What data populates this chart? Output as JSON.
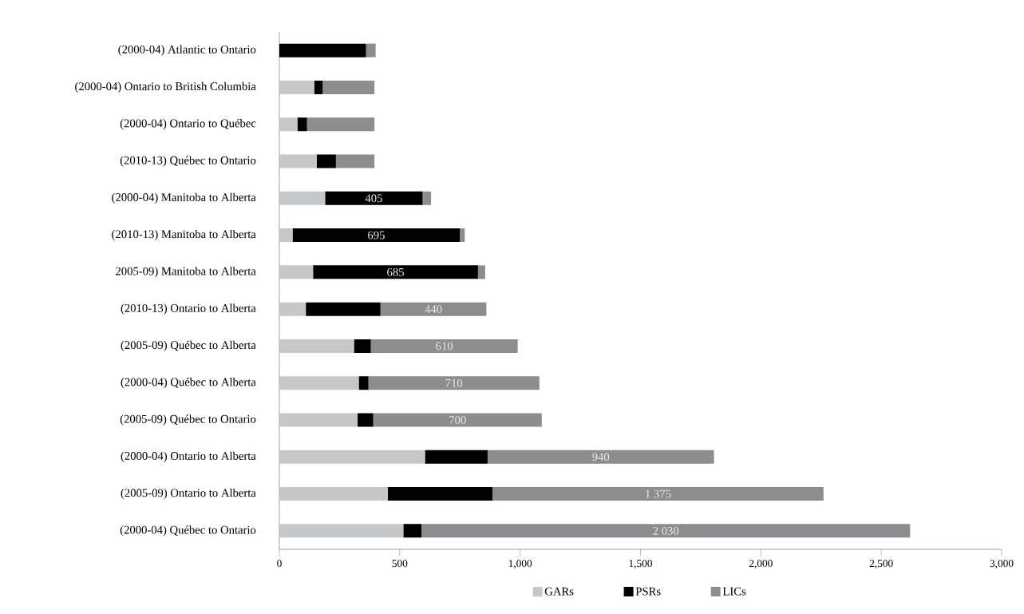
{
  "chart_data": {
    "type": "bar",
    "orientation": "horizontal",
    "stacked": true,
    "categories": [
      "(2000-04) Atlantic to Ontario",
      "(2000-04) Ontario to British Columbia",
      "(2000-04) Ontario to Québec",
      "(2010-13) Québec to Ontario",
      "(2000-04) Manitoba to Alberta",
      "(2010-13) Manitoba to Alberta",
      "2005-09) Manitoba to Alberta",
      "(2010-13) Ontario to Alberta",
      "(2005-09) Québec to Alberta",
      "(2000-04) Québec to Alberta",
      "(2005-09) Québec to Ontario",
      "(2000-04) Ontario to Alberta",
      "(2005-09) Ontario to Alberta",
      "(2000-04) Québec to Ontario"
    ],
    "series": [
      {
        "name": "GARs",
        "color": "#c6c7c9",
        "values": [
          0,
          145,
          75,
          155,
          190,
          55,
          140,
          110,
          310,
          330,
          325,
          605,
          450,
          515
        ]
      },
      {
        "name": "PSRs",
        "color": "#000000",
        "values": [
          360,
          35,
          40,
          80,
          405,
          695,
          685,
          310,
          70,
          40,
          65,
          260,
          435,
          75
        ],
        "value_labels": [
          null,
          null,
          null,
          null,
          "405",
          "695",
          "685",
          null,
          null,
          null,
          null,
          null,
          null,
          null
        ]
      },
      {
        "name": "LICs",
        "color": "#8c8d8f",
        "values": [
          40,
          215,
          280,
          160,
          35,
          20,
          30,
          440,
          610,
          710,
          700,
          940,
          1375,
          2030
        ],
        "value_labels": [
          null,
          null,
          null,
          null,
          null,
          null,
          null,
          "440",
          "610",
          "710",
          "700",
          "940",
          "1 375",
          "2 030"
        ]
      }
    ],
    "xlim": [
      0,
      3000
    ],
    "xticks": [
      0,
      500,
      {
        "value": 1000,
        "label": "1,000"
      },
      {
        "value": 1500,
        "label": "1,500"
      },
      {
        "value": 2000,
        "label": "2,000"
      },
      {
        "value": 2500,
        "label": "2,500"
      },
      {
        "value": 3000,
        "label": "3,000"
      }
    ],
    "grid": false,
    "legend": "bottom"
  }
}
